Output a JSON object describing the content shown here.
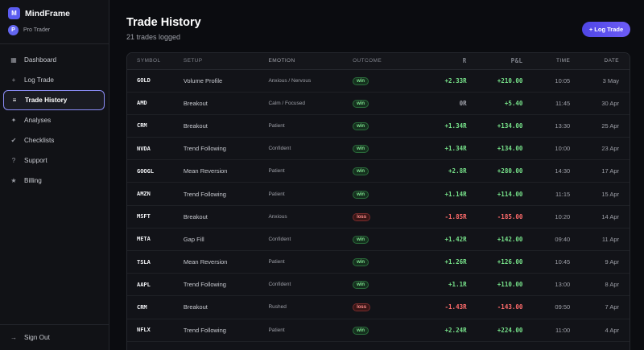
{
  "brand": {
    "logo_letter": "M",
    "name": "MindFrame"
  },
  "plan": {
    "avatar_letter": "P",
    "label": "Pro Trader"
  },
  "nav": [
    {
      "icon": "grid-icon",
      "glyph": "▦",
      "label": "Dashboard",
      "active": false
    },
    {
      "icon": "plus-icon",
      "glyph": "+",
      "label": "Log Trade",
      "active": false
    },
    {
      "icon": "list-icon",
      "glyph": "≡",
      "label": "Trade History",
      "active": true
    },
    {
      "icon": "sparkle-icon",
      "glyph": "✦",
      "label": "Analyses",
      "active": false
    },
    {
      "icon": "check-icon",
      "glyph": "✔",
      "label": "Checklists",
      "active": false
    },
    {
      "icon": "question-icon",
      "glyph": "?",
      "label": "Support",
      "active": false
    },
    {
      "icon": "star-icon",
      "glyph": "★",
      "label": "Billing",
      "active": false
    }
  ],
  "signout": {
    "icon": "arrow-right-icon",
    "glyph": "→",
    "label": "Sign Out"
  },
  "header": {
    "title": "Trade History",
    "subtitle": "21 trades logged",
    "log_button": "+ Log Trade"
  },
  "table": {
    "columns": [
      "SYMBOL",
      "SETUP",
      "EMOTION",
      "OUTCOME",
      "R",
      "P&L",
      "TIME",
      "DATE"
    ],
    "rows": [
      {
        "symbol": "GOLD",
        "setup": "Volume Profile",
        "emotion": "Anxious / Nervous",
        "outcome": "win",
        "r": "+2.33R",
        "pnl": "+210.00",
        "time": "10:05",
        "date": "3 May"
      },
      {
        "symbol": "AMD",
        "setup": "Breakout",
        "emotion": "Calm / Focused",
        "outcome": "win",
        "r": "0R",
        "pnl": "+5.40",
        "time": "11:45",
        "date": "30 Apr"
      },
      {
        "symbol": "CRM",
        "setup": "Breakout",
        "emotion": "Patient",
        "outcome": "win",
        "r": "+1.34R",
        "pnl": "+134.00",
        "time": "13:30",
        "date": "25 Apr"
      },
      {
        "symbol": "NVDA",
        "setup": "Trend Following",
        "emotion": "Confident",
        "outcome": "win",
        "r": "+1.34R",
        "pnl": "+134.00",
        "time": "10:00",
        "date": "23 Apr"
      },
      {
        "symbol": "GOOGL",
        "setup": "Mean Reversion",
        "emotion": "Patient",
        "outcome": "win",
        "r": "+2.8R",
        "pnl": "+280.00",
        "time": "14:30",
        "date": "17 Apr"
      },
      {
        "symbol": "AMZN",
        "setup": "Trend Following",
        "emotion": "Patient",
        "outcome": "win",
        "r": "+1.14R",
        "pnl": "+114.00",
        "time": "11:15",
        "date": "15 Apr"
      },
      {
        "symbol": "MSFT",
        "setup": "Breakout",
        "emotion": "Anxious",
        "outcome": "loss",
        "r": "-1.85R",
        "pnl": "-185.00",
        "time": "10:20",
        "date": "14 Apr"
      },
      {
        "symbol": "META",
        "setup": "Gap Fill",
        "emotion": "Confident",
        "outcome": "win",
        "r": "+1.42R",
        "pnl": "+142.00",
        "time": "09:40",
        "date": "11 Apr"
      },
      {
        "symbol": "TSLA",
        "setup": "Mean Reversion",
        "emotion": "Patient",
        "outcome": "win",
        "r": "+1.26R",
        "pnl": "+126.00",
        "time": "10:45",
        "date": "9 Apr"
      },
      {
        "symbol": "AAPL",
        "setup": "Trend Following",
        "emotion": "Confident",
        "outcome": "win",
        "r": "+1.1R",
        "pnl": "+110.00",
        "time": "13:00",
        "date": "8 Apr"
      },
      {
        "symbol": "CRM",
        "setup": "Breakout",
        "emotion": "Rushed",
        "outcome": "loss",
        "r": "-1.43R",
        "pnl": "-143.00",
        "time": "09:50",
        "date": "7 Apr"
      },
      {
        "symbol": "NFLX",
        "setup": "Trend Following",
        "emotion": "Patient",
        "outcome": "win",
        "r": "+2.24R",
        "pnl": "+224.00",
        "time": "11:00",
        "date": "4 Apr"
      }
    ]
  }
}
